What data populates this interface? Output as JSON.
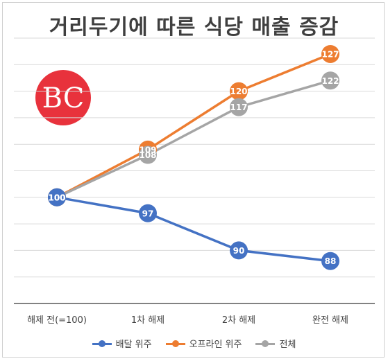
{
  "title": "거리두기에 따른 식당 매출 증감",
  "logo_text": "BC",
  "chart_data": {
    "type": "line",
    "categories": [
      "해제 전(=100)",
      "1차 해제",
      "2차 해제",
      "완전 해제"
    ],
    "series": [
      {
        "name": "배달 위주",
        "values": [
          100,
          97,
          90,
          88
        ],
        "color": "#4472c4"
      },
      {
        "name": "오프라인 위주",
        "values": [
          100,
          109,
          120,
          127
        ],
        "color": "#ed7d31"
      },
      {
        "name": "전체",
        "values": [
          100,
          108,
          117,
          122
        ],
        "color": "#a5a5a5"
      }
    ],
    "ylim": [
      80,
      130
    ],
    "grid": true,
    "legend": "bottom",
    "data_labels": true
  },
  "colors": {
    "title": "#3f3f3f",
    "grid": "#d9d9d9",
    "axis": "#595959",
    "logo": "#e8323c"
  }
}
